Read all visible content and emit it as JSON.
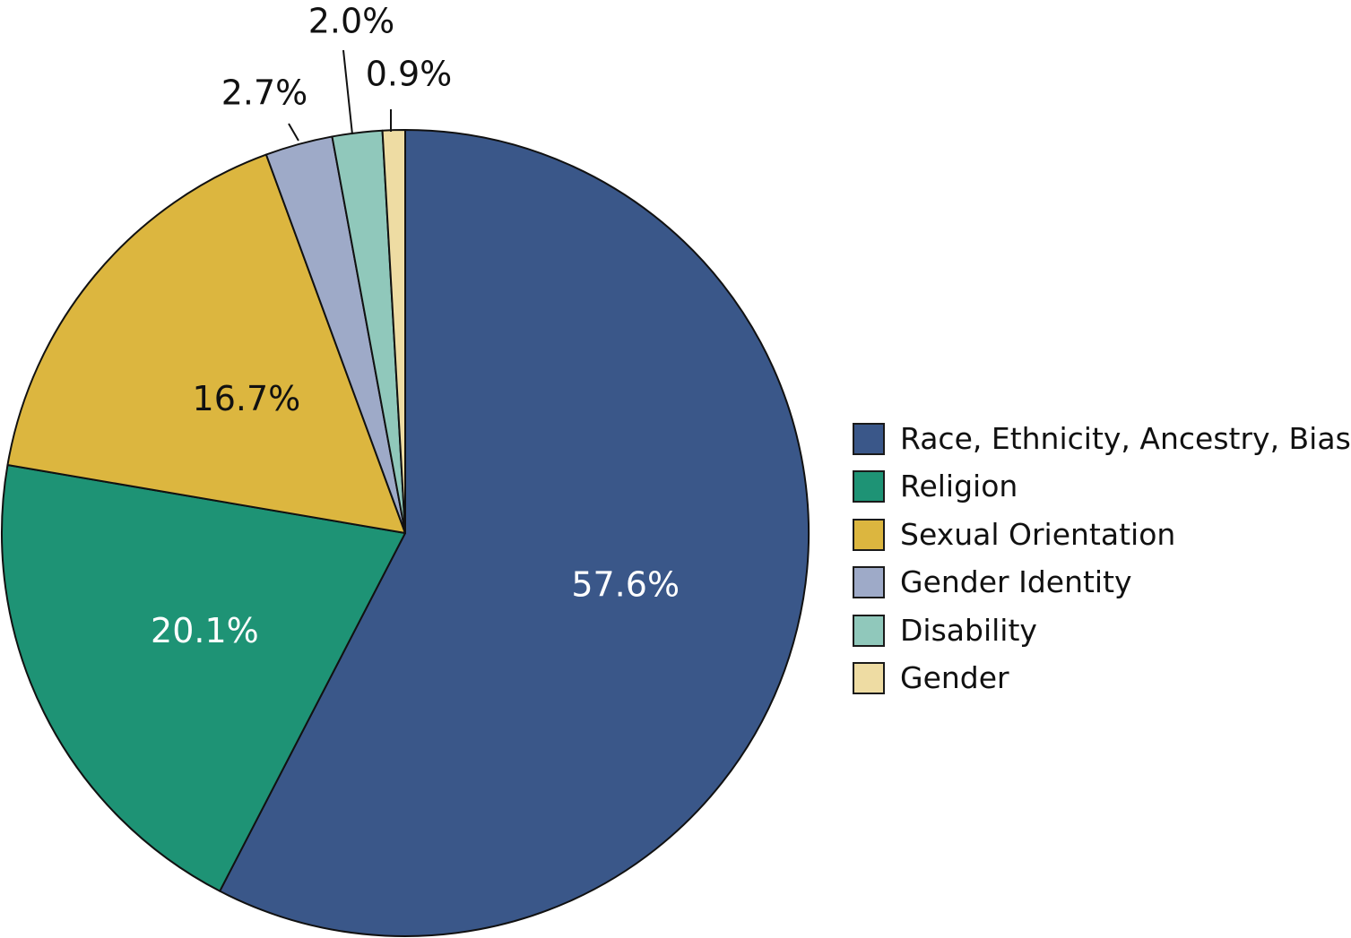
{
  "chart_data": {
    "type": "pie",
    "title": "",
    "legend_position": "right",
    "start_angle": "top",
    "direction": "clockwise",
    "slices": [
      {
        "name": "Race, Ethnicity, Ancestry, Bias",
        "value": 57.6,
        "label": "57.6%",
        "color": "#3a5789",
        "label_color": "#ffffff",
        "label_placement": "inside"
      },
      {
        "name": "Religion",
        "value": 20.1,
        "label": "20.1%",
        "color": "#1e9375",
        "label_color": "#ffffff",
        "label_placement": "inside"
      },
      {
        "name": "Sexual Orientation",
        "value": 16.7,
        "label": "16.7%",
        "color": "#dcb63f",
        "label_color": "#111111",
        "label_placement": "inside"
      },
      {
        "name": "Gender Identity",
        "value": 2.7,
        "label": "2.7%",
        "color": "#9eaac8",
        "label_color": "#111111",
        "label_placement": "outside"
      },
      {
        "name": "Disability",
        "value": 2.0,
        "label": "2.0%",
        "color": "#90c8bb",
        "label_color": "#111111",
        "label_placement": "outside"
      },
      {
        "name": "Gender",
        "value": 0.9,
        "label": "0.9%",
        "color": "#eedca3",
        "label_color": "#111111",
        "label_placement": "outside"
      }
    ]
  }
}
